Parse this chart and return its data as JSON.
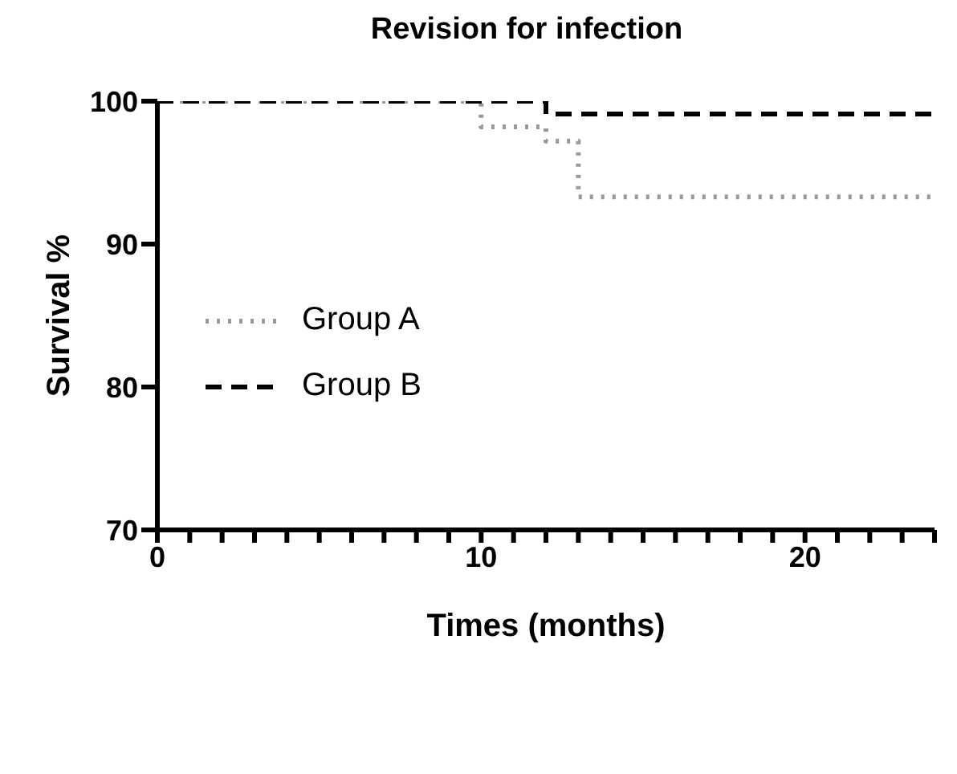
{
  "chart_data": {
    "type": "step",
    "title": "Revision for infection",
    "xlabel": "Times (months)",
    "ylabel": "Survival %",
    "xlim": [
      0,
      24
    ],
    "ylim": [
      70,
      100
    ],
    "xticks": [
      0,
      {
        "value": 1,
        "label": null
      },
      {
        "value": 2,
        "label": null
      },
      {
        "value": 3,
        "label": null
      },
      {
        "value": 4,
        "label": null
      },
      {
        "value": 5,
        "label": null
      },
      {
        "value": 6,
        "label": null
      },
      {
        "value": 7,
        "label": null
      },
      {
        "value": 8,
        "label": null
      },
      {
        "value": 9,
        "label": null
      },
      10,
      {
        "value": 11,
        "label": null
      },
      {
        "value": 12,
        "label": null
      },
      {
        "value": 13,
        "label": null
      },
      {
        "value": 14,
        "label": null
      },
      {
        "value": 15,
        "label": null
      },
      {
        "value": 16,
        "label": null
      },
      {
        "value": 17,
        "label": null
      },
      {
        "value": 18,
        "label": null
      },
      {
        "value": 19,
        "label": null
      },
      20,
      {
        "value": 21,
        "label": null
      },
      {
        "value": 22,
        "label": null
      },
      {
        "value": 23,
        "label": null
      },
      {
        "value": 24,
        "label": null
      }
    ],
    "yticks": [
      70,
      80,
      90,
      100
    ],
    "grid": false,
    "legend": "left",
    "marker": "none",
    "series": [
      {
        "name": "Group A",
        "color": "#999999",
        "line_style": "dotted",
        "x": [
          0,
          10,
          12,
          13,
          24
        ],
        "values": [
          100,
          98.2,
          97.2,
          93.3,
          93.3
        ]
      },
      {
        "name": "Group B",
        "color": "#000000",
        "line_style": "dashed",
        "x": [
          0,
          12,
          24
        ],
        "values": [
          100,
          99.1,
          99.1
        ]
      }
    ]
  }
}
